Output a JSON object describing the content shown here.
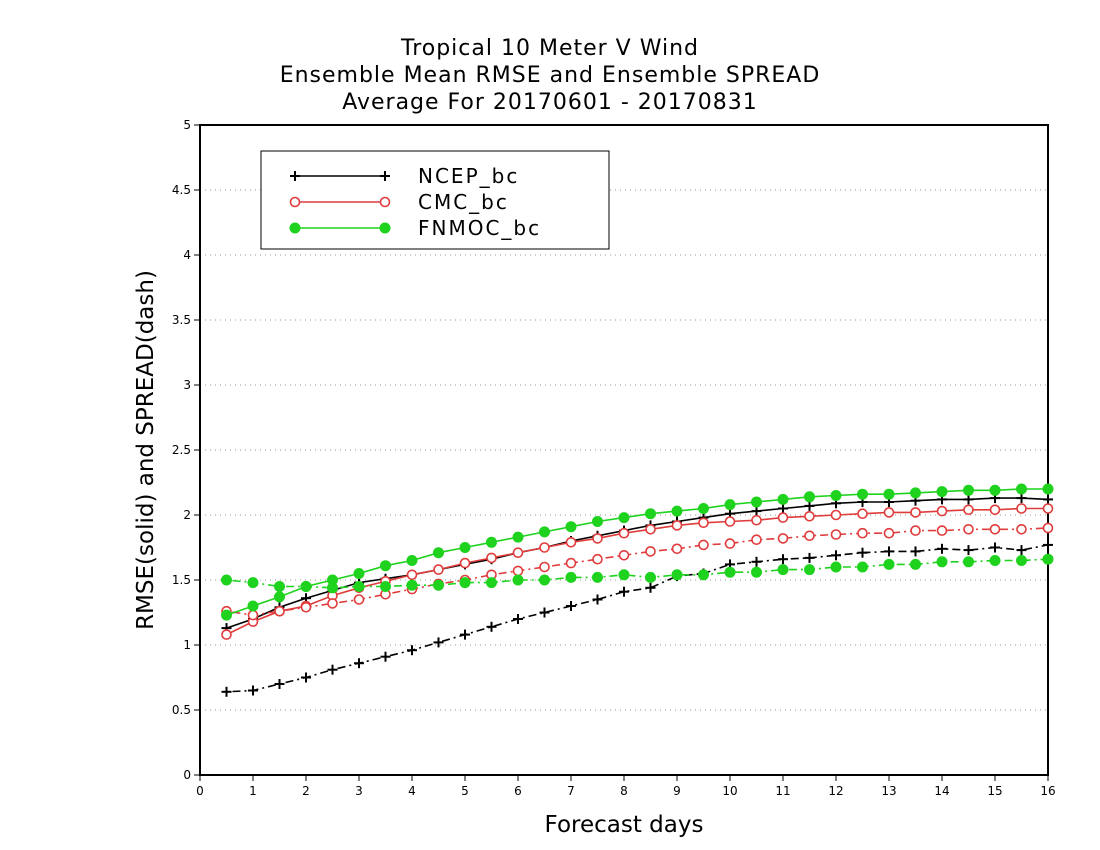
{
  "chart_data": {
    "type": "line",
    "title_lines": [
      "Tropical 10 Meter V Wind",
      "Ensemble Mean RMSE and Ensemble SPREAD",
      "Average For 20170601 - 20170831"
    ],
    "xlabel": "Forecast days",
    "ylabel": "RMSE(solid) and SPREAD(dash)",
    "xlim": [
      0,
      16
    ],
    "ylim": [
      0,
      5
    ],
    "x_ticks": [
      "0",
      "1",
      "2",
      "3",
      "4",
      "5",
      "6",
      "7",
      "8",
      "9",
      "10",
      "11",
      "12",
      "13",
      "14",
      "15",
      "16"
    ],
    "y_ticks": [
      "0",
      "0.5",
      "1",
      "1.5",
      "2",
      "2.5",
      "3",
      "3.5",
      "4",
      "4.5",
      "5"
    ],
    "y_grid": "dotted",
    "legend_placement": "top-left",
    "x": [
      0.5,
      1,
      1.5,
      2,
      2.5,
      3,
      3.5,
      4,
      4.5,
      5,
      5.5,
      6,
      6.5,
      7,
      7.5,
      8,
      8.5,
      9,
      9.5,
      10,
      10.5,
      11,
      11.5,
      12,
      12.5,
      13,
      13.5,
      14,
      14.5,
      15,
      15.5,
      16
    ],
    "series": [
      {
        "name": "NCEP_bc",
        "color": "#000000",
        "marker": "plus",
        "rmse": [
          1.13,
          1.2,
          1.29,
          1.36,
          1.42,
          1.48,
          1.51,
          1.54,
          1.58,
          1.62,
          1.66,
          1.71,
          1.75,
          1.8,
          1.84,
          1.88,
          1.92,
          1.95,
          1.98,
          2.01,
          2.03,
          2.05,
          2.07,
          2.09,
          2.1,
          2.1,
          2.11,
          2.12,
          2.12,
          2.13,
          2.13,
          2.12
        ],
        "spread": [
          0.64,
          0.65,
          0.7,
          0.75,
          0.81,
          0.86,
          0.91,
          0.96,
          1.02,
          1.08,
          1.14,
          1.2,
          1.25,
          1.3,
          1.35,
          1.41,
          1.44,
          1.53,
          1.55,
          1.62,
          1.64,
          1.66,
          1.67,
          1.69,
          1.71,
          1.72,
          1.72,
          1.74,
          1.73,
          1.75,
          1.73,
          1.77
        ]
      },
      {
        "name": "CMC_bc",
        "color": "#e03c3c",
        "marker": "open-circle",
        "rmse": [
          1.08,
          1.18,
          1.26,
          1.3,
          1.38,
          1.44,
          1.49,
          1.54,
          1.58,
          1.63,
          1.67,
          1.71,
          1.75,
          1.79,
          1.82,
          1.86,
          1.89,
          1.92,
          1.94,
          1.95,
          1.96,
          1.98,
          1.99,
          2.0,
          2.01,
          2.02,
          2.02,
          2.03,
          2.04,
          2.04,
          2.05,
          2.05
        ],
        "spread": [
          1.26,
          1.23,
          1.26,
          1.29,
          1.32,
          1.35,
          1.39,
          1.43,
          1.47,
          1.5,
          1.54,
          1.57,
          1.6,
          1.63,
          1.66,
          1.69,
          1.72,
          1.74,
          1.77,
          1.78,
          1.81,
          1.82,
          1.84,
          1.85,
          1.86,
          1.86,
          1.88,
          1.88,
          1.89,
          1.89,
          1.89,
          1.9
        ]
      },
      {
        "name": "FNMOC_bc",
        "color": "#1ed21e",
        "marker": "filled-circle",
        "rmse": [
          1.23,
          1.3,
          1.37,
          1.45,
          1.5,
          1.55,
          1.61,
          1.65,
          1.71,
          1.75,
          1.79,
          1.83,
          1.87,
          1.91,
          1.95,
          1.98,
          2.01,
          2.03,
          2.05,
          2.08,
          2.1,
          2.12,
          2.14,
          2.15,
          2.16,
          2.16,
          2.17,
          2.18,
          2.19,
          2.19,
          2.2,
          2.2
        ],
        "spread": [
          1.5,
          1.48,
          1.45,
          1.45,
          1.44,
          1.45,
          1.45,
          1.46,
          1.46,
          1.48,
          1.48,
          1.5,
          1.5,
          1.52,
          1.52,
          1.54,
          1.52,
          1.54,
          1.54,
          1.56,
          1.56,
          1.58,
          1.58,
          1.6,
          1.6,
          1.62,
          1.62,
          1.64,
          1.64,
          1.65,
          1.65,
          1.66
        ]
      }
    ]
  }
}
